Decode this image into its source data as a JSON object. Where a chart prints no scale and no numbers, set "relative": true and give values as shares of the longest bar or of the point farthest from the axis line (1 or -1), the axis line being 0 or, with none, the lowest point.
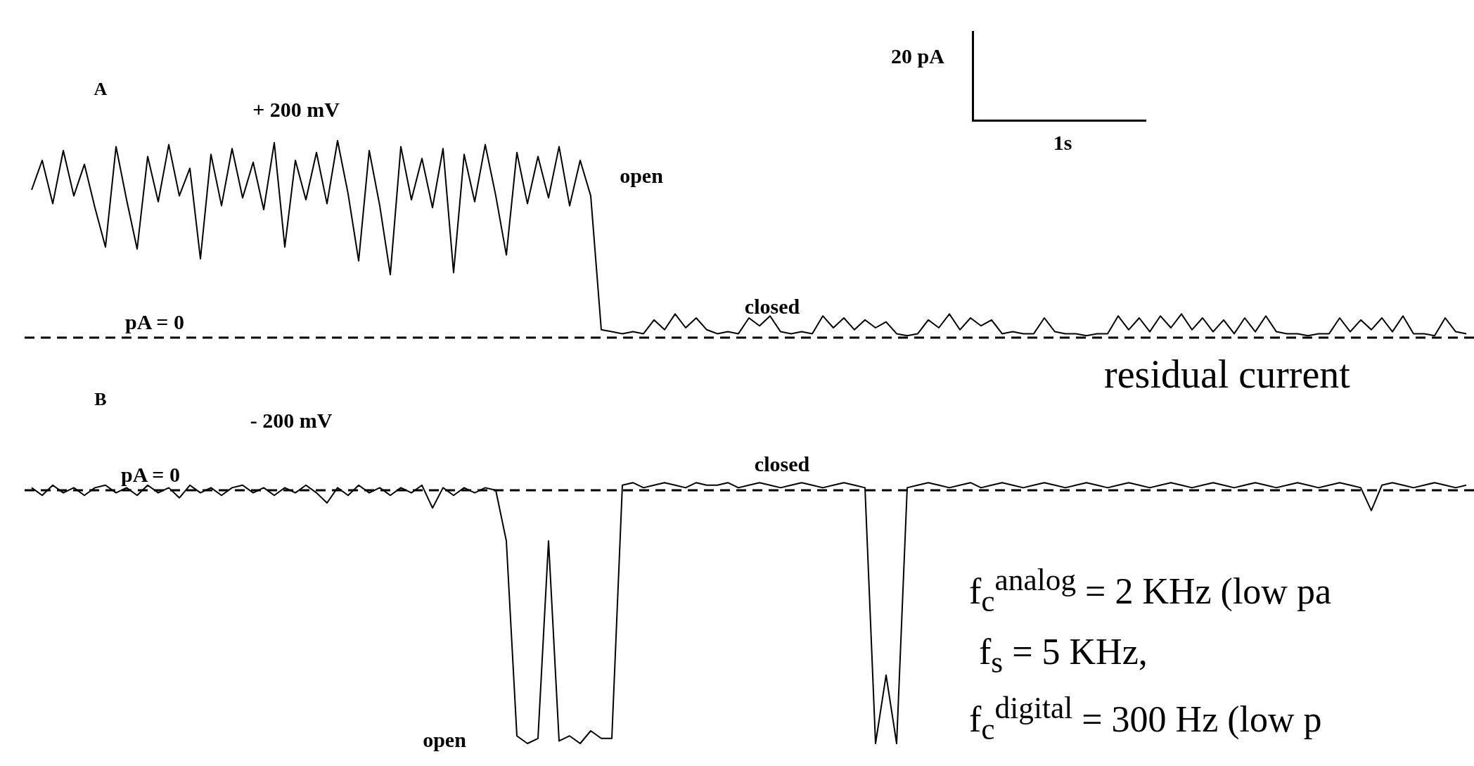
{
  "chart_data": [
    {
      "type": "line",
      "title": "A",
      "subtitle": "+ 200 mV",
      "relative": true,
      "marker": "none",
      "line_style": "solid",
      "categories": [
        null,
        null,
        null,
        null,
        null,
        null,
        null,
        null,
        null,
        null,
        null,
        null,
        null,
        null,
        null,
        null,
        null,
        null,
        null,
        null,
        null,
        null,
        null,
        null,
        null,
        null,
        null,
        null,
        null,
        null,
        null,
        null,
        null,
        null,
        null,
        null,
        null,
        null,
        null,
        null,
        null,
        null,
        null,
        null,
        null,
        null,
        null,
        null,
        null,
        null,
        null,
        null,
        null,
        null,
        null,
        null,
        null,
        null,
        null,
        null,
        null,
        null,
        null,
        null,
        null,
        null,
        null,
        null,
        null,
        null,
        null,
        null,
        null,
        null,
        null,
        null,
        null,
        null,
        null,
        null,
        null,
        null,
        null,
        null,
        null,
        null,
        null,
        null,
        null,
        null,
        null,
        null,
        null,
        null,
        null,
        null,
        null,
        null,
        null,
        null,
        null,
        null,
        null,
        null,
        null,
        null,
        null,
        null,
        null,
        null,
        null,
        null,
        null,
        null,
        null,
        null,
        null,
        null,
        null,
        null,
        null,
        null,
        null,
        null,
        null,
        null,
        null,
        null,
        null,
        null,
        null,
        null,
        null,
        null,
        null,
        null,
        null
      ],
      "series": [
        {
          "color": "#000000",
          "values": [
            0.75,
            0.9,
            0.68,
            0.95,
            0.72,
            0.88,
            0.66,
            0.46,
            0.97,
            0.7,
            0.45,
            0.92,
            0.69,
            0.98,
            0.72,
            0.86,
            0.4,
            0.93,
            0.67,
            0.96,
            0.71,
            0.89,
            0.65,
            0.99,
            0.46,
            0.9,
            0.7,
            0.94,
            0.68,
            1.0,
            0.73,
            0.39,
            0.95,
            0.67,
            0.32,
            0.97,
            0.7,
            0.91,
            0.66,
            0.96,
            0.33,
            0.93,
            0.69,
            0.98,
            0.72,
            0.42,
            0.94,
            0.68,
            0.92,
            0.71,
            0.97,
            0.67,
            0.9,
            0.72,
            0.04,
            0.03,
            0.02,
            0.03,
            0.02,
            0.09,
            0.04,
            0.12,
            0.05,
            0.1,
            0.04,
            0.02,
            0.03,
            0.02,
            0.1,
            0.06,
            0.11,
            0.03,
            0.02,
            0.03,
            0.02,
            0.11,
            0.05,
            0.1,
            0.04,
            0.09,
            0.05,
            0.08,
            0.02,
            0.01,
            0.02,
            0.09,
            0.05,
            0.12,
            0.04,
            0.1,
            0.06,
            0.09,
            0.02,
            0.03,
            0.02,
            0.02,
            0.1,
            0.03,
            0.02,
            0.02,
            0.01,
            0.02,
            0.02,
            0.11,
            0.04,
            0.1,
            0.03,
            0.11,
            0.05,
            0.12,
            0.04,
            0.1,
            0.03,
            0.09,
            0.02,
            0.1,
            0.03,
            0.11,
            0.03,
            0.02,
            0.02,
            0.01,
            0.02,
            0.02,
            0.1,
            0.03,
            0.09,
            0.04,
            0.1,
            0.03,
            0.11,
            0.02,
            0.02,
            0.01,
            0.1,
            0.03,
            0.02
          ]
        }
      ],
      "ref_lines": [
        {
          "axis": "y",
          "value": 0,
          "label": "pA = 0",
          "line_style": "dashed"
        }
      ],
      "annotations": [
        "open",
        "closed",
        "residual current",
        "20 pA",
        "1s"
      ]
    },
    {
      "type": "line",
      "title": "B",
      "subtitle": "- 200 mV",
      "relative": true,
      "marker": "none",
      "line_style": "solid",
      "categories": [
        null,
        null,
        null,
        null,
        null,
        null,
        null,
        null,
        null,
        null,
        null,
        null,
        null,
        null,
        null,
        null,
        null,
        null,
        null,
        null,
        null,
        null,
        null,
        null,
        null,
        null,
        null,
        null,
        null,
        null,
        null,
        null,
        null,
        null,
        null,
        null,
        null,
        null,
        null,
        null,
        null,
        null,
        null,
        null,
        null,
        null,
        null,
        null,
        null,
        null,
        null,
        null,
        null,
        null,
        null,
        null,
        null,
        null,
        null,
        null,
        null,
        null,
        null,
        null,
        null,
        null,
        null,
        null,
        null,
        null,
        null,
        null,
        null,
        null,
        null,
        null,
        null,
        null,
        null,
        null,
        null,
        null,
        null,
        null,
        null,
        null,
        null,
        null,
        null,
        null,
        null,
        null,
        null,
        null,
        null,
        null,
        null,
        null,
        null,
        null,
        null,
        null,
        null,
        null,
        null,
        null,
        null,
        null,
        null,
        null,
        null,
        null,
        null,
        null,
        null,
        null,
        null,
        null,
        null,
        null,
        null,
        null,
        null,
        null,
        null,
        null,
        null,
        null,
        null,
        null,
        null,
        null,
        null,
        null,
        null,
        null,
        null
      ],
      "series": [
        {
          "color": "#000000",
          "values": [
            0.01,
            -0.02,
            0.02,
            -0.01,
            0.01,
            -0.02,
            0.01,
            0.02,
            -0.01,
            0.01,
            -0.02,
            0.02,
            -0.01,
            0.01,
            -0.03,
            0.02,
            -0.01,
            0.01,
            -0.02,
            0.01,
            0.02,
            -0.01,
            0.01,
            -0.02,
            0.01,
            -0.01,
            0.02,
            -0.01,
            -0.05,
            0.01,
            -0.02,
            0.02,
            -0.01,
            0.01,
            -0.02,
            0.01,
            -0.01,
            0.02,
            -0.07,
            0.01,
            -0.02,
            0.01,
            -0.01,
            0.01,
            0.0,
            -0.2,
            -0.97,
            -1.0,
            -0.98,
            -0.2,
            -0.99,
            -0.97,
            -1.0,
            -0.95,
            -0.98,
            -0.98,
            0.02,
            0.03,
            0.01,
            0.02,
            0.03,
            0.02,
            0.01,
            0.03,
            0.02,
            0.02,
            0.03,
            0.01,
            0.02,
            0.03,
            0.02,
            0.01,
            0.02,
            0.03,
            0.02,
            0.01,
            0.02,
            0.03,
            0.02,
            0.01,
            -1.0,
            -0.73,
            -1.0,
            0.01,
            0.02,
            0.03,
            0.02,
            0.01,
            0.02,
            0.03,
            0.01,
            0.02,
            0.03,
            0.02,
            0.01,
            0.02,
            0.03,
            0.02,
            0.01,
            0.02,
            0.03,
            0.02,
            0.01,
            0.02,
            0.03,
            0.02,
            0.01,
            0.02,
            0.03,
            0.02,
            0.01,
            0.02,
            0.03,
            0.02,
            0.01,
            0.02,
            0.03,
            0.02,
            0.01,
            0.02,
            0.03,
            0.02,
            0.01,
            0.02,
            0.03,
            0.02,
            0.01,
            -0.08,
            0.02,
            0.03,
            0.02,
            0.01,
            0.02,
            0.03,
            0.02,
            0.01,
            0.02
          ]
        }
      ],
      "ref_lines": [
        {
          "axis": "y",
          "value": 0,
          "label": "pA = 0",
          "line_style": "dashed"
        }
      ],
      "annotations": [
        "closed",
        "open",
        "f$_{c}$$^{analog}$ = 2 KHz (low pa",
        "f$_{s}$ = 5 KHz,",
        "f$_{c}$$^{digital}$ = 300 Hz (low p"
      ]
    }
  ]
}
